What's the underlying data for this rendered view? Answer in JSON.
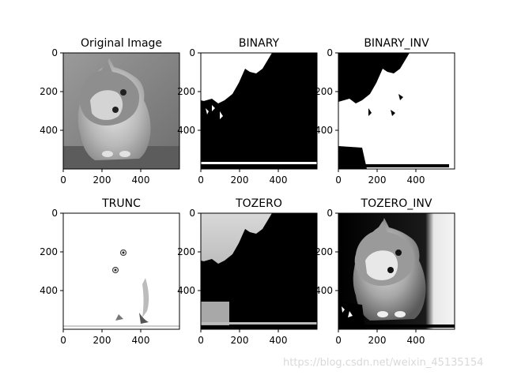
{
  "figure": {
    "panels": [
      {
        "id": "original",
        "title": "Original Image",
        "image_kind": "grayscale-photo",
        "subject": "cat",
        "x_ticks": [
          "0",
          "200",
          "400"
        ],
        "y_ticks": [
          "0",
          "200",
          "400"
        ]
      },
      {
        "id": "binary",
        "title": "BINARY",
        "image_kind": "binary",
        "x_ticks": [
          "0",
          "200",
          "400"
        ],
        "y_ticks": [
          "0",
          "200",
          "400"
        ]
      },
      {
        "id": "binary_inv",
        "title": "BINARY_INV",
        "image_kind": "binary-inverted",
        "x_ticks": [
          "0",
          "200",
          "400"
        ],
        "y_ticks": [
          "0",
          "200",
          "400"
        ]
      },
      {
        "id": "trunc",
        "title": "TRUNC",
        "image_kind": "truncated",
        "x_ticks": [
          "0",
          "200",
          "400"
        ],
        "y_ticks": [
          "0",
          "200",
          "400"
        ]
      },
      {
        "id": "tozero",
        "title": "TOZERO",
        "image_kind": "tozero",
        "x_ticks": [
          "0",
          "200",
          "400"
        ],
        "y_ticks": [
          "0",
          "200",
          "400"
        ]
      },
      {
        "id": "tozero_inv",
        "title": "TOZERO_INV",
        "image_kind": "tozero-inverted",
        "x_ticks": [
          "0",
          "200",
          "400"
        ],
        "y_ticks": [
          "0",
          "200",
          "400"
        ]
      }
    ]
  },
  "watermark": "https://blog.csdn.net/weixin_45135154",
  "colors": {
    "background": "#ffffff",
    "axis": "#000000",
    "watermark": "#d9d9d9"
  }
}
